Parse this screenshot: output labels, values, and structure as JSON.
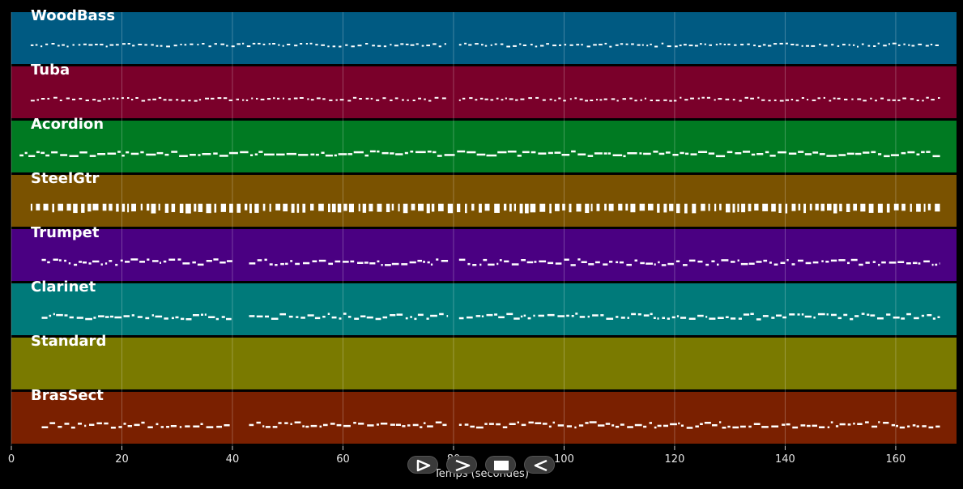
{
  "chart_data": {
    "type": "piano-roll",
    "xlabel": "Temps (secondes)",
    "xlim": [
      0,
      171
    ],
    "xticks": [
      0,
      20,
      40,
      60,
      80,
      100,
      120,
      140,
      160
    ],
    "grid": true,
    "tracks": [
      {
        "name": "WoodBass",
        "color": "#005a82",
        "pattern": "bass",
        "segments": [
          [
            3.5,
            79
          ],
          [
            81,
            168
          ]
        ]
      },
      {
        "name": "Tuba",
        "color": "#7a002a",
        "pattern": "bass",
        "segments": [
          [
            3.5,
            79
          ],
          [
            81,
            168
          ]
        ]
      },
      {
        "name": "Acordion",
        "color": "#007a22",
        "pattern": "dense",
        "segments": [
          [
            1.5,
            168
          ]
        ]
      },
      {
        "name": "SteelGtr",
        "color": "#7a5200",
        "pattern": "chords",
        "segments": [
          [
            3.5,
            168
          ]
        ]
      },
      {
        "name": "Trumpet",
        "color": "#4a0082",
        "pattern": "melody",
        "segments": [
          [
            5.5,
            40
          ],
          [
            43,
            79
          ],
          [
            81,
            168
          ]
        ]
      },
      {
        "name": "Clarinet",
        "color": "#007a7a",
        "pattern": "melody",
        "segments": [
          [
            5.5,
            40
          ],
          [
            43,
            79
          ],
          [
            81,
            168
          ]
        ]
      },
      {
        "name": "Standard",
        "color": "#7a7a00",
        "pattern": "empty",
        "segments": []
      },
      {
        "name": "BrasSect",
        "color": "#7a2000",
        "pattern": "melody",
        "segments": [
          [
            5.5,
            40
          ],
          [
            43,
            79
          ],
          [
            81,
            168
          ]
        ]
      }
    ]
  },
  "controls": [
    {
      "name": "play-button",
      "icon": "play-icon"
    },
    {
      "name": "forward-button",
      "icon": "forward-icon"
    },
    {
      "name": "stop-button",
      "icon": "stop-icon"
    },
    {
      "name": "rewind-button",
      "icon": "rewind-icon"
    }
  ]
}
